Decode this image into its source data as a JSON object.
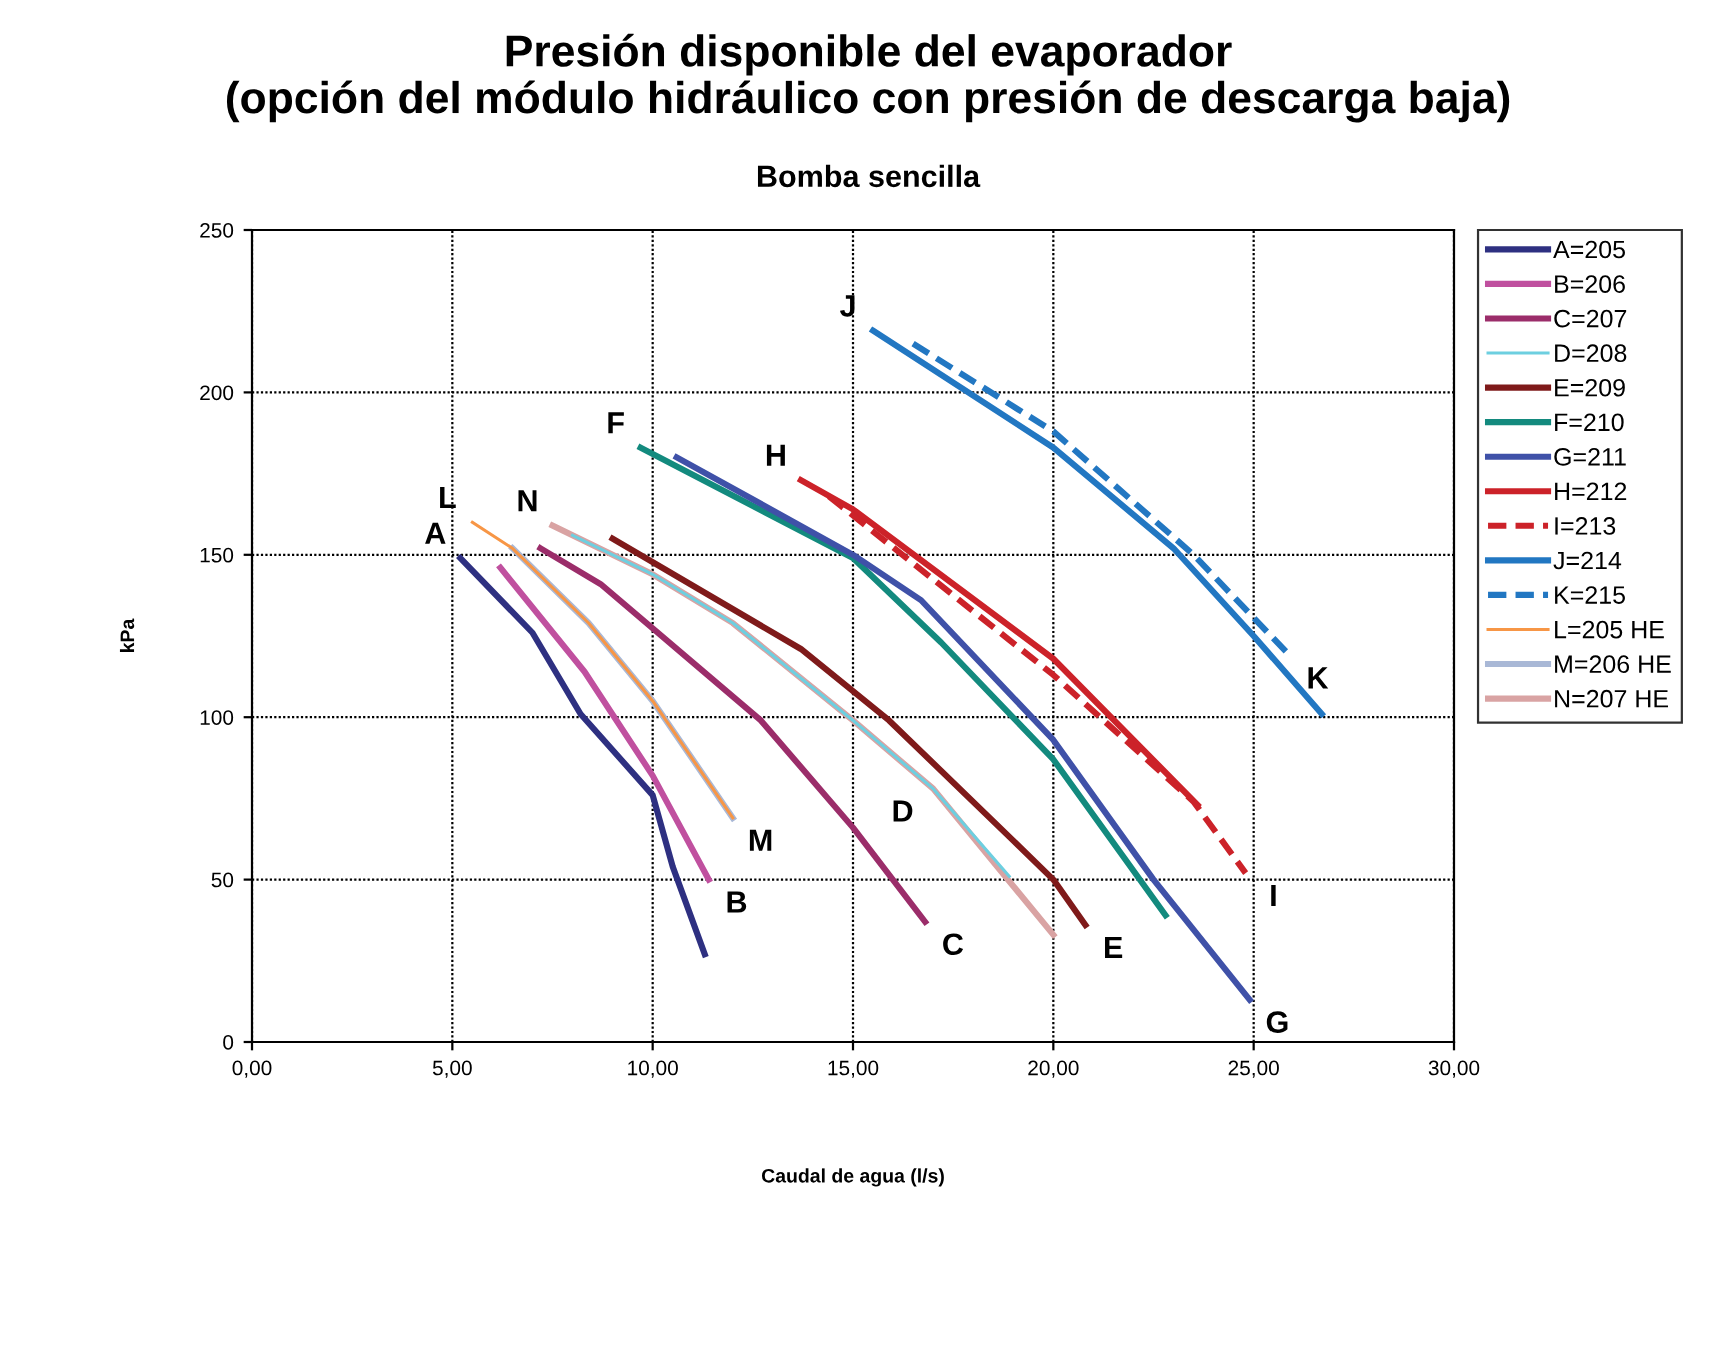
{
  "chart_data": {
    "type": "line",
    "title": "Presión disponible del evaporador\n(opción del módulo hidráulico con presión de descarga baja)",
    "subtitle": "Bomba sencilla",
    "xlabel": "Caudal de agua (l/s)",
    "ylabel": "kPa",
    "xlim": [
      0,
      30
    ],
    "ylim": [
      0,
      250
    ],
    "xticks": [
      {
        "value": 0,
        "label": "0,00"
      },
      {
        "value": 5,
        "label": "5,00"
      },
      {
        "value": 10,
        "label": "10,00"
      },
      {
        "value": 15,
        "label": "15,00"
      },
      {
        "value": 20,
        "label": "20,00"
      },
      {
        "value": 25,
        "label": "25,00"
      },
      {
        "value": 30,
        "label": "30,00"
      }
    ],
    "yticks": [
      0,
      50,
      100,
      150,
      200,
      250
    ],
    "grid": true,
    "legend": "right",
    "marker": "none",
    "series": [
      {
        "name": "A=205",
        "color": "#2e3081",
        "line_style": "solid",
        "x": [
          5.2,
          7.0,
          8.2,
          10.0,
          10.5,
          11.3
        ],
        "values": [
          149,
          126,
          101,
          76,
          54,
          27
        ]
      },
      {
        "name": "B=206",
        "color": "#c0509f",
        "line_style": "solid",
        "x": [
          6.2,
          8.3,
          10.0,
          11.4
        ],
        "values": [
          146,
          114,
          82,
          50
        ]
      },
      {
        "name": "C=207",
        "color": "#9b2d6a",
        "line_style": "solid",
        "x": [
          7.2,
          8.7,
          12.7,
          15.0,
          16.8
        ],
        "values": [
          152,
          141,
          99,
          66,
          37
        ]
      },
      {
        "name": "D=208",
        "color": "#6dcfe0",
        "line_style": "solid",
        "x": [
          8.0,
          10.0,
          12.0,
          15.0,
          17.0,
          18.9
        ],
        "values": [
          156,
          144,
          129,
          99,
          78,
          51
        ]
      },
      {
        "name": "E=209",
        "color": "#7f1a1a",
        "line_style": "solid",
        "x": [
          9.0,
          13.7,
          15.9,
          19.0,
          20.0,
          20.8
        ],
        "values": [
          155,
          121,
          99,
          62,
          50,
          36
        ]
      },
      {
        "name": "F=210",
        "color": "#138a7e",
        "line_style": "solid",
        "x": [
          9.7,
          15.0,
          17.2,
          20.0,
          22.8
        ],
        "values": [
          183,
          149,
          123,
          87,
          39
        ]
      },
      {
        "name": "G=211",
        "color": "#3f51a8",
        "line_style": "solid",
        "x": [
          10.6,
          15.0,
          16.7,
          20.0,
          22.5,
          24.9
        ],
        "values": [
          180,
          150,
          136,
          93,
          50,
          13
        ]
      },
      {
        "name": "H=212",
        "color": "#cc2229",
        "line_style": "solid",
        "x": [
          13.7,
          15.0,
          20.0,
          23.6
        ],
        "values": [
          173,
          164,
          118,
          73
        ]
      },
      {
        "name": "I=213",
        "color": "#cc2229",
        "line_style": "dashed",
        "x": [
          14.4,
          20.0,
          23.5,
          24.8
        ],
        "values": [
          168,
          113,
          74,
          52
        ]
      },
      {
        "name": "J=214",
        "color": "#2277c2",
        "line_style": "solid",
        "x": [
          15.5,
          20.0,
          23.0,
          25.0,
          26.7
        ],
        "values": [
          219,
          183,
          152,
          125,
          101
        ]
      },
      {
        "name": "K=215",
        "color": "#2277c2",
        "line_style": "dashed",
        "x": [
          16.5,
          20.0,
          23.5,
          25.9
        ],
        "values": [
          215,
          188,
          150,
          119
        ]
      },
      {
        "name": "L=205 HE",
        "color": "#f79646",
        "line_style": "solid",
        "x": [
          5.5,
          6.5,
          8.4,
          10.0,
          12.0
        ],
        "values": [
          160,
          152,
          129,
          105,
          69
        ]
      },
      {
        "name": "M=206 HE",
        "color": "#a9b8d6",
        "line_style": "solid",
        "x": [
          6.5,
          8.4,
          10.0,
          12.0
        ],
        "values": [
          152,
          129,
          105,
          69
        ]
      },
      {
        "name": "N=207 HE",
        "color": "#d9a3a3",
        "line_style": "solid",
        "x": [
          7.5,
          10.0,
          12.0,
          15.0,
          17.0,
          20.0
        ],
        "values": [
          159,
          144,
          129,
          99,
          78,
          33
        ]
      }
    ],
    "annotations": [
      {
        "text": "A",
        "x": 5.2,
        "y": 149
      },
      {
        "text": "B",
        "x": 11.4,
        "y": 50
      },
      {
        "text": "C",
        "x": 16.8,
        "y": 37
      },
      {
        "text": "D",
        "x": 17.0,
        "y": 78
      },
      {
        "text": "E",
        "x": 20.8,
        "y": 36
      },
      {
        "text": "F",
        "x": 9.7,
        "y": 183
      },
      {
        "text": "G",
        "x": 24.9,
        "y": 13
      },
      {
        "text": "H",
        "x": 13.7,
        "y": 173
      },
      {
        "text": "I",
        "x": 24.8,
        "y": 52
      },
      {
        "text": "J",
        "x": 15.5,
        "y": 219
      },
      {
        "text": "K",
        "x": 25.9,
        "y": 119
      },
      {
        "text": "L",
        "x": 5.5,
        "y": 160
      },
      {
        "text": "M",
        "x": 12.0,
        "y": 69
      },
      {
        "text": "N",
        "x": 7.5,
        "y": 159
      }
    ]
  }
}
